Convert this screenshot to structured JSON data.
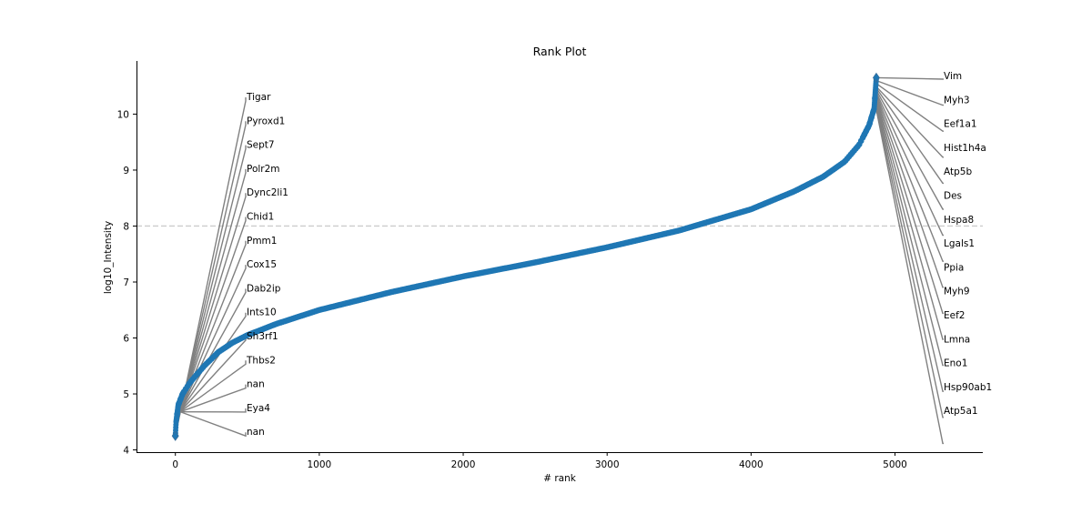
{
  "chart_data": {
    "type": "scatter",
    "title": "Rank Plot",
    "xlabel": "# rank",
    "ylabel": "log10_Intensity",
    "xlim": [
      -270,
      5610
    ],
    "ylim": [
      3.96,
      10.95
    ],
    "x_ticks": [
      0,
      1000,
      2000,
      3000,
      4000,
      5000
    ],
    "y_ticks": [
      4,
      5,
      6,
      7,
      8,
      9,
      10
    ],
    "grid": false,
    "threshold_line": {
      "y": 8.0,
      "style": "dashed",
      "color": "#cccccc"
    },
    "series": [
      {
        "color": "#1f77b4",
        "marker": "circle",
        "curve_points": [
          {
            "rank": 0,
            "value": 4.25
          },
          {
            "rank": 5,
            "value": 4.5
          },
          {
            "rank": 20,
            "value": 4.8
          },
          {
            "rank": 50,
            "value": 5.0
          },
          {
            "rank": 100,
            "value": 5.2
          },
          {
            "rank": 200,
            "value": 5.5
          },
          {
            "rank": 300,
            "value": 5.75
          },
          {
            "rank": 400,
            "value": 5.92
          },
          {
            "rank": 500,
            "value": 6.05
          },
          {
            "rank": 700,
            "value": 6.25
          },
          {
            "rank": 1000,
            "value": 6.5
          },
          {
            "rank": 1500,
            "value": 6.82
          },
          {
            "rank": 2000,
            "value": 7.1
          },
          {
            "rank": 2500,
            "value": 7.35
          },
          {
            "rank": 3000,
            "value": 7.62
          },
          {
            "rank": 3500,
            "value": 7.92
          },
          {
            "rank": 4000,
            "value": 8.3
          },
          {
            "rank": 4300,
            "value": 8.62
          },
          {
            "rank": 4500,
            "value": 8.88
          },
          {
            "rank": 4650,
            "value": 9.15
          },
          {
            "rank": 4750,
            "value": 9.45
          },
          {
            "rank": 4820,
            "value": 9.8
          },
          {
            "rank": 4855,
            "value": 10.1
          },
          {
            "rank": 4870,
            "value": 10.65
          }
        ]
      }
    ],
    "annotations_left": [
      {
        "label": "Tigar",
        "rank": 0,
        "value": 4.25
      },
      {
        "label": "Pyroxd1",
        "rank": 1,
        "value": 4.3
      },
      {
        "label": "Sept7",
        "rank": 2,
        "value": 4.35
      },
      {
        "label": "Polr2m",
        "rank": 3,
        "value": 4.4
      },
      {
        "label": "Dync2li1",
        "rank": 4,
        "value": 4.45
      },
      {
        "label": "Chid1",
        "rank": 5,
        "value": 4.5
      },
      {
        "label": "Pmm1",
        "rank": 6,
        "value": 4.52
      },
      {
        "label": "Cox15",
        "rank": 7,
        "value": 4.55
      },
      {
        "label": "Dab2ip",
        "rank": 8,
        "value": 4.58
      },
      {
        "label": "Ints10",
        "rank": 9,
        "value": 4.6
      },
      {
        "label": "Sh3rf1",
        "rank": 10,
        "value": 4.62
      },
      {
        "label": "Thbs2",
        "rank": 11,
        "value": 4.64
      },
      {
        "label": "nan",
        "rank": 12,
        "value": 4.66
      },
      {
        "label": "Eya4",
        "rank": 13,
        "value": 4.68
      },
      {
        "label": "nan",
        "rank": 14,
        "value": 4.7
      }
    ],
    "annotations_right": [
      {
        "label": "Vim",
        "rank": 4870,
        "value": 10.65
      },
      {
        "label": "Myh3",
        "rank": 4869,
        "value": 10.6
      },
      {
        "label": "Eef1a1",
        "rank": 4868,
        "value": 10.55
      },
      {
        "label": "Hist1h4a",
        "rank": 4867,
        "value": 10.5
      },
      {
        "label": "Atp5b",
        "rank": 4866,
        "value": 10.48
      },
      {
        "label": "Des",
        "rank": 4865,
        "value": 10.45
      },
      {
        "label": "Hspa8",
        "rank": 4864,
        "value": 10.42
      },
      {
        "label": "Lgals1",
        "rank": 4863,
        "value": 10.4
      },
      {
        "label": "Ppia",
        "rank": 4862,
        "value": 10.38
      },
      {
        "label": "Myh9",
        "rank": 4861,
        "value": 10.36
      },
      {
        "label": "Eef2",
        "rank": 4860,
        "value": 10.34
      },
      {
        "label": "Lmna",
        "rank": 4859,
        "value": 10.32
      },
      {
        "label": "Eno1",
        "rank": 4858,
        "value": 10.3
      },
      {
        "label": "Hsp90ab1",
        "rank": 4857,
        "value": 10.28
      },
      {
        "label": "Atp5a1",
        "rank": 4856,
        "value": 10.26
      }
    ],
    "colors": {
      "points": "#1f77b4",
      "leader_lines": "#808080",
      "threshold": "#cccccc"
    }
  }
}
